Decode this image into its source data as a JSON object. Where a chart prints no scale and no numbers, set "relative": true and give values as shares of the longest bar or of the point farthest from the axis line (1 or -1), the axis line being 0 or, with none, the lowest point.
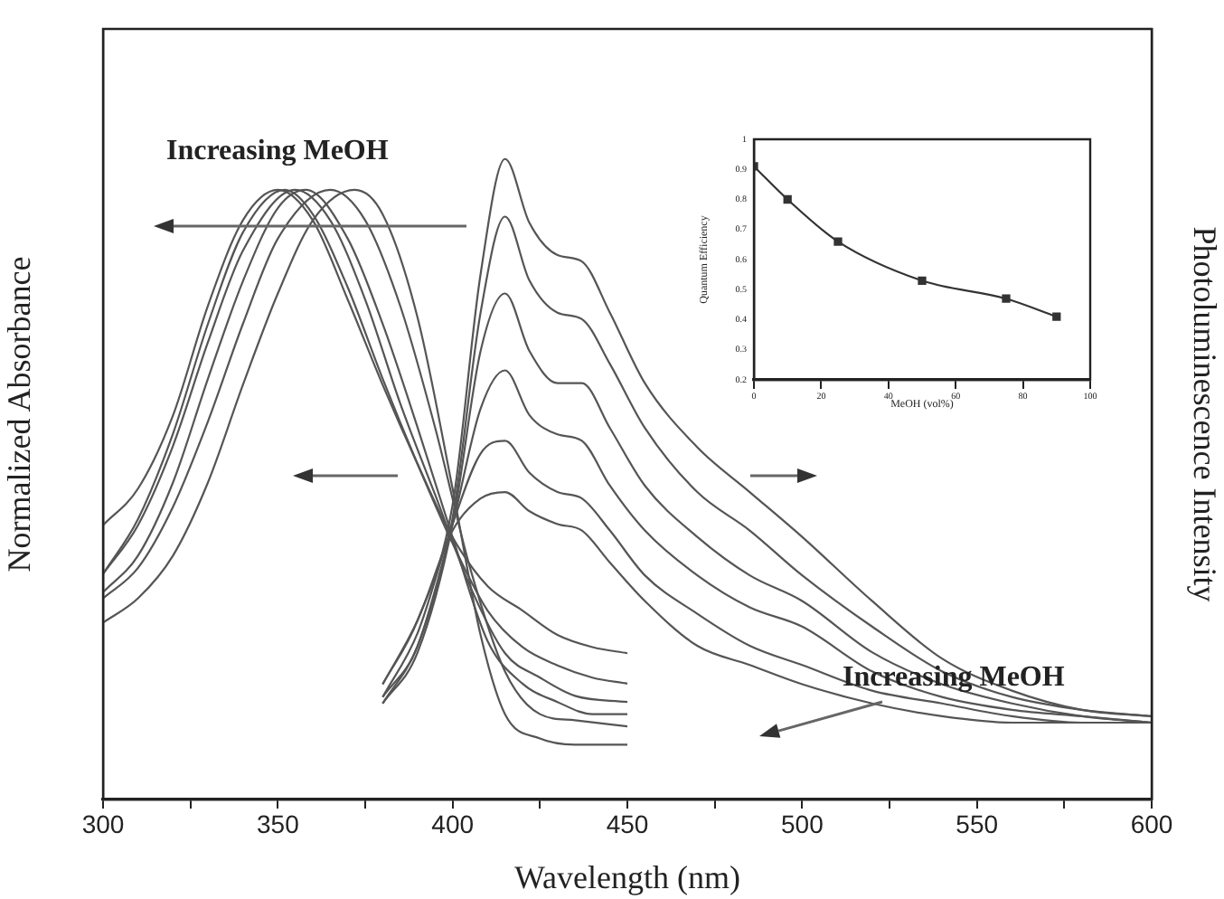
{
  "chart_data": [
    {
      "type": "line",
      "xlabel": "Wavelength (nm)",
      "ylabel": "Normalized Absorbance",
      "y2label": "Photoluminescence Intensity",
      "relative": true,
      "marker": "none",
      "grid": false,
      "xlim": [
        300,
        600
      ],
      "xticks": [
        300,
        {
          "value": 325,
          "label": null
        },
        350,
        {
          "value": 375,
          "label": null
        },
        400,
        {
          "value": 425,
          "label": null
        },
        450,
        {
          "value": 475,
          "label": null
        },
        500,
        {
          "value": 525,
          "label": null
        },
        550,
        {
          "value": 575,
          "label": null
        },
        600
      ],
      "annotations": [
        "Increasing MeOH",
        "Increasing MeOH"
      ],
      "series": [
        {
          "color": "#555555",
          "x": [
            300,
            310,
            320,
            330,
            340,
            350,
            360,
            370,
            380,
            390,
            400,
            410,
            420,
            430,
            440,
            450
          ],
          "values": [
            0.45,
            0.51,
            0.63,
            0.81,
            0.95,
            1.0,
            0.95,
            0.82,
            0.68,
            0.55,
            0.43,
            0.35,
            0.31,
            0.27,
            0.25,
            0.24
          ]
        },
        {
          "color": "#555555",
          "x": [
            300,
            310,
            320,
            330,
            340,
            352,
            360,
            370,
            380,
            390,
            400,
            410,
            420,
            430,
            440,
            450
          ],
          "values": [
            0.37,
            0.46,
            0.6,
            0.78,
            0.93,
            1.0,
            0.96,
            0.84,
            0.69,
            0.55,
            0.42,
            0.31,
            0.25,
            0.22,
            0.2,
            0.19
          ]
        },
        {
          "color": "#555555",
          "x": [
            300,
            310,
            320,
            330,
            340,
            355,
            365,
            375,
            385,
            395,
            405,
            415,
            425,
            435,
            450
          ],
          "values": [
            0.37,
            0.45,
            0.58,
            0.75,
            0.9,
            1.0,
            0.95,
            0.82,
            0.65,
            0.5,
            0.35,
            0.24,
            0.2,
            0.17,
            0.16
          ]
        },
        {
          "color": "#555555",
          "x": [
            300,
            310,
            320,
            330,
            340,
            350,
            358,
            370,
            380,
            390,
            400,
            410,
            420,
            430,
            440,
            450
          ],
          "values": [
            0.34,
            0.4,
            0.52,
            0.69,
            0.85,
            0.97,
            1.0,
            0.92,
            0.78,
            0.61,
            0.43,
            0.26,
            0.19,
            0.16,
            0.14,
            0.14
          ]
        },
        {
          "color": "#555555",
          "x": [
            300,
            310,
            320,
            330,
            340,
            350,
            365,
            375,
            385,
            395,
            405,
            415,
            425,
            435,
            450
          ],
          "values": [
            0.33,
            0.38,
            0.48,
            0.62,
            0.78,
            0.92,
            1.0,
            0.95,
            0.81,
            0.61,
            0.38,
            0.21,
            0.14,
            0.13,
            0.12
          ]
        },
        {
          "color": "#555555",
          "x": [
            300,
            310,
            320,
            330,
            340,
            350,
            360,
            372,
            380,
            390,
            400,
            408,
            415,
            425,
            435,
            450
          ],
          "values": [
            0.29,
            0.33,
            0.4,
            0.52,
            0.68,
            0.83,
            0.95,
            1.0,
            0.96,
            0.79,
            0.51,
            0.27,
            0.14,
            0.1,
            0.09,
            0.09
          ]
        },
        {
          "color": "#555555",
          "axis": "y2",
          "x": [
            380,
            390,
            400,
            408,
            415,
            422,
            430,
            437,
            445,
            455,
            470,
            485,
            500,
            520,
            540,
            560,
            580,
            600
          ],
          "values": [
            0.18,
            0.28,
            0.46,
            0.82,
            1.0,
            0.9,
            0.85,
            0.84,
            0.76,
            0.65,
            0.55,
            0.48,
            0.41,
            0.31,
            0.22,
            0.17,
            0.14,
            0.13
          ]
        },
        {
          "color": "#555555",
          "axis": "y2",
          "x": [
            380,
            390,
            400,
            408,
            415,
            422,
            430,
            437,
            445,
            455,
            470,
            485,
            500,
            520,
            540,
            560,
            580,
            600
          ],
          "values": [
            0.16,
            0.24,
            0.44,
            0.76,
            0.91,
            0.81,
            0.76,
            0.75,
            0.68,
            0.58,
            0.48,
            0.42,
            0.35,
            0.27,
            0.2,
            0.16,
            0.14,
            0.13
          ]
        },
        {
          "color": "#555555",
          "axis": "y2",
          "x": [
            380,
            390,
            400,
            408,
            415,
            422,
            430,
            437,
            445,
            455,
            470,
            485,
            500,
            520,
            540,
            560,
            580,
            600
          ],
          "values": [
            0.15,
            0.23,
            0.43,
            0.7,
            0.79,
            0.7,
            0.65,
            0.65,
            0.58,
            0.49,
            0.41,
            0.35,
            0.31,
            0.23,
            0.18,
            0.15,
            0.13,
            0.12
          ]
        },
        {
          "color": "#555555",
          "axis": "y2",
          "x": [
            380,
            390,
            400,
            408,
            415,
            422,
            430,
            437,
            445,
            455,
            470,
            485,
            500,
            520,
            540,
            560,
            580,
            600
          ],
          "values": [
            0.15,
            0.24,
            0.43,
            0.61,
            0.67,
            0.6,
            0.57,
            0.56,
            0.49,
            0.42,
            0.35,
            0.3,
            0.27,
            0.2,
            0.16,
            0.14,
            0.13,
            0.12
          ]
        },
        {
          "color": "#555555",
          "axis": "y2",
          "x": [
            380,
            390,
            400,
            408,
            415,
            422,
            430,
            437,
            445,
            455,
            470,
            485,
            500,
            520,
            540,
            560,
            580,
            600
          ],
          "values": [
            0.16,
            0.26,
            0.43,
            0.54,
            0.56,
            0.51,
            0.48,
            0.47,
            0.42,
            0.35,
            0.29,
            0.24,
            0.21,
            0.17,
            0.15,
            0.13,
            0.12,
            0.12
          ]
        },
        {
          "color": "#555555",
          "axis": "y2",
          "x": [
            380,
            390,
            400,
            408,
            415,
            422,
            430,
            437,
            445,
            455,
            470,
            485,
            500,
            520,
            540,
            560,
            580,
            600
          ],
          "values": [
            0.18,
            0.28,
            0.42,
            0.47,
            0.48,
            0.45,
            0.43,
            0.42,
            0.37,
            0.31,
            0.24,
            0.21,
            0.18,
            0.15,
            0.13,
            0.12,
            0.12,
            0.12
          ]
        }
      ]
    },
    {
      "type": "line",
      "xlabel": "MeOH (vol%)",
      "ylabel": "Quantum Efficiency",
      "marker": "square",
      "grid": false,
      "xlim": [
        0,
        100
      ],
      "xticks": [
        0,
        20,
        40,
        60,
        80,
        100
      ],
      "ylim": [
        0.2,
        1.0
      ],
      "yticks": [
        0.2,
        0.3,
        0.4,
        0.5,
        0.6,
        0.7,
        0.8,
        0.9,
        1.0
      ],
      "series": [
        {
          "color": "#333333",
          "x": [
            0,
            10,
            25,
            50,
            75,
            90
          ],
          "values": [
            0.91,
            0.8,
            0.66,
            0.53,
            0.47,
            0.41
          ]
        }
      ]
    }
  ]
}
